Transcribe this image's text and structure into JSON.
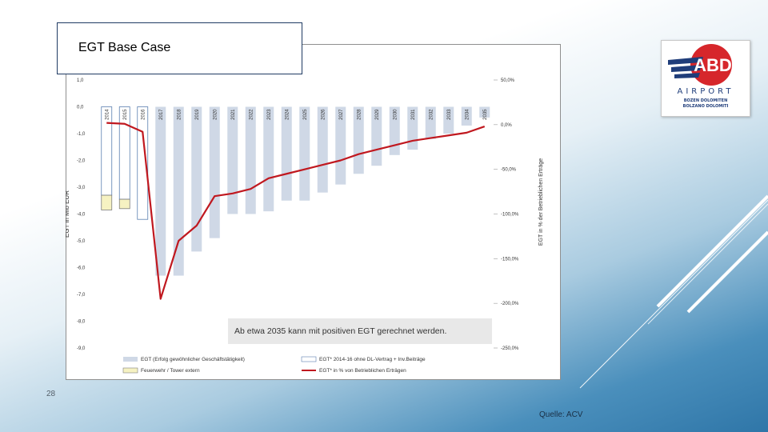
{
  "slide": {
    "title": "EGT Base Case",
    "page_number": "28",
    "source": "Quelle: ACV"
  },
  "logo": {
    "brand": "ABD",
    "word": "AIRPORT",
    "line1": "BOZEN DOLOMITEN",
    "line2": "BOLZANO DOLOMITI",
    "colors": {
      "red": "#d6262b",
      "blue": "#1f3d7a"
    }
  },
  "chart_data": {
    "type": "bar",
    "title": "",
    "ylabel": "EGT in Mio EUR",
    "y2label": "EGT in % der Betrieblichen Erträge",
    "ylim": [
      -9,
      1
    ],
    "y2lim": [
      -2.5,
      0.5
    ],
    "yticks": [
      "1,0",
      "0,0",
      "-1,0",
      "-2,0",
      "-3,0",
      "-4,0",
      "-5,0",
      "-6,0",
      "-7,0",
      "-8,0",
      "-9,0"
    ],
    "y2ticks": [
      "50,0%",
      "0,0%",
      "-50,0%",
      "-100,0%",
      "-150,0%",
      "-200,0%",
      "-250,0%"
    ],
    "categories": [
      "2014",
      "2015",
      "2016",
      "2017",
      "2018",
      "2019",
      "2020",
      "2021",
      "2022",
      "2023",
      "2024",
      "2025",
      "2026",
      "2027",
      "2028",
      "2029",
      "2030",
      "2031",
      "2032",
      "2033",
      "2034",
      "2035"
    ],
    "series": [
      {
        "name": "EGT (Erfolg gewöhnlicher Geschäftstätigkeit)",
        "kind": "bar",
        "color": "#cfd8e6",
        "values": [
          null,
          null,
          null,
          -6.3,
          -6.3,
          -5.4,
          -4.9,
          -4.0,
          -4.0,
          -3.9,
          -3.5,
          -3.5,
          -3.2,
          -2.9,
          -2.5,
          -2.2,
          -1.8,
          -1.6,
          -1.2,
          -1.0,
          -0.7,
          -0.4
        ]
      },
      {
        "name": "EGT* 2014-16 ohne DL-Vertrag + Inv.Beiträge",
        "kind": "bar",
        "color": "#ffffff",
        "stroke": "#5b7fb0",
        "values": [
          -3.3,
          -3.45,
          -4.2,
          null,
          null,
          null,
          null,
          null,
          null,
          null,
          null,
          null,
          null,
          null,
          null,
          null,
          null,
          null,
          null,
          null,
          null,
          null
        ]
      },
      {
        "name": "Feuerwehr / Tower extern",
        "kind": "stacked-bar",
        "color": "#f6f2c2",
        "stroke": "#7d7d7d",
        "base": [
          -3.3,
          -3.45,
          -4.2
        ],
        "values": [
          -3.85,
          -3.8,
          -3.85,
          null,
          null,
          null,
          null,
          null,
          null,
          null,
          null,
          null,
          null,
          null,
          null,
          null,
          null,
          null,
          null,
          null,
          null,
          null
        ]
      },
      {
        "name": "EGT* in % von Betrieblichen Erträgen",
        "kind": "line",
        "axis": "y2",
        "color": "#c0181f",
        "values": [
          0.02,
          0.01,
          -0.08,
          -1.95,
          -1.3,
          -1.13,
          -0.8,
          -0.77,
          -0.72,
          -0.6,
          -0.55,
          -0.5,
          -0.45,
          -0.4,
          -0.33,
          -0.28,
          -0.23,
          -0.18,
          -0.15,
          -0.12,
          -0.09,
          -0.02
        ]
      }
    ],
    "annotation": "Ab etwa 2035 kann mit positiven EGT gerechnet werden.",
    "legend_position": "bottom",
    "grid": false
  }
}
